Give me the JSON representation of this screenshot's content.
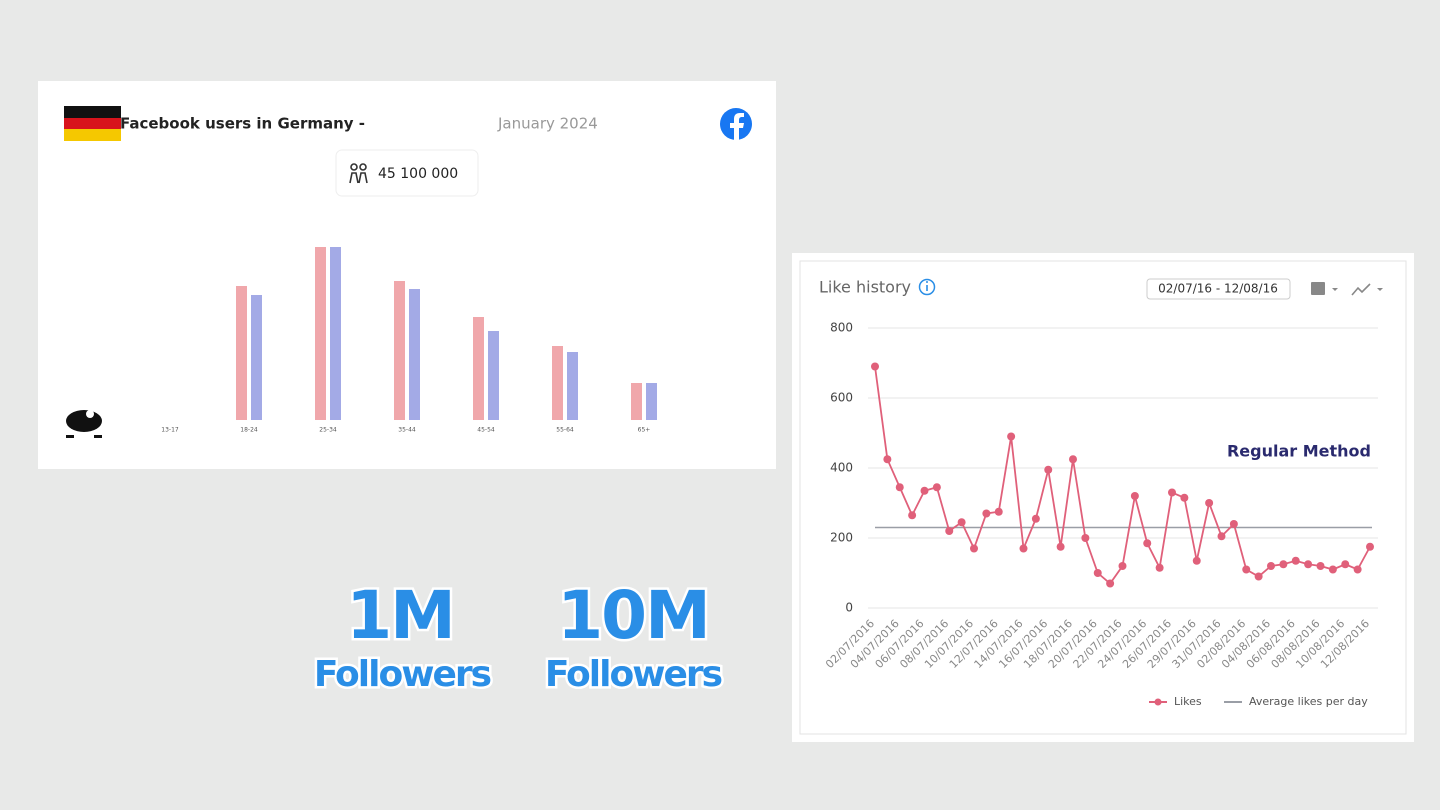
{
  "chart_data": [
    {
      "type": "bar",
      "title": "Facebook users in Germany -",
      "subtitle": "January 2024",
      "total": "45 100 000",
      "categories": [
        "13-17",
        "18-24",
        "25-34",
        "35-44",
        "45-54",
        "55-64",
        "65+"
      ],
      "series": [
        {
          "color": "#f0a7ab",
          "values": [
            0,
            13.4,
            17.3,
            13.9,
            10.3,
            7.4,
            3.7
          ]
        },
        {
          "color": "#a3aae6",
          "values": [
            0,
            12.5,
            17.3,
            13.1,
            8.9,
            6.8,
            3.7
          ]
        }
      ]
    },
    {
      "type": "line",
      "title": "Like history",
      "date_range": "02/07/16 - 12/08/16",
      "annotation": "Regular Method",
      "categories": [
        "02/07/2016",
        null,
        "04/07/2016",
        null,
        "06/07/2016",
        null,
        "08/07/2016",
        null,
        "10/07/2016",
        null,
        "12/07/2016",
        null,
        "14/07/2016",
        null,
        "16/07/2016",
        null,
        "18/07/2016",
        null,
        "20/07/2016",
        null,
        "22/07/2016",
        null,
        "24/07/2016",
        null,
        "26/07/2016",
        null,
        "29/07/2016",
        null,
        "31/07/2016",
        null,
        "02/08/2016",
        null,
        "04/08/2016",
        null,
        "06/08/2016",
        null,
        "08/08/2016",
        null,
        "10/08/2016",
        null,
        "12/08/2016"
      ],
      "series": [
        {
          "name": "Likes",
          "color": "#e0607a",
          "values": [
            690,
            425,
            345,
            265,
            335,
            345,
            220,
            245,
            170,
            270,
            275,
            490,
            170,
            255,
            395,
            175,
            425,
            200,
            100,
            70,
            120,
            320,
            185,
            115,
            330,
            315,
            135,
            300,
            205,
            240,
            110,
            90,
            120,
            125,
            135,
            125,
            120,
            110,
            125,
            110,
            175
          ]
        }
      ],
      "reference_line": {
        "name": "Average likes per day",
        "value": 230,
        "color": "#9a9ea6"
      },
      "ylim": [
        0,
        800
      ],
      "yticks": [
        0,
        200,
        400,
        600,
        800
      ],
      "grid": true
    }
  ],
  "captions": [
    "1M",
    "Followers",
    "10M",
    "Followers"
  ]
}
